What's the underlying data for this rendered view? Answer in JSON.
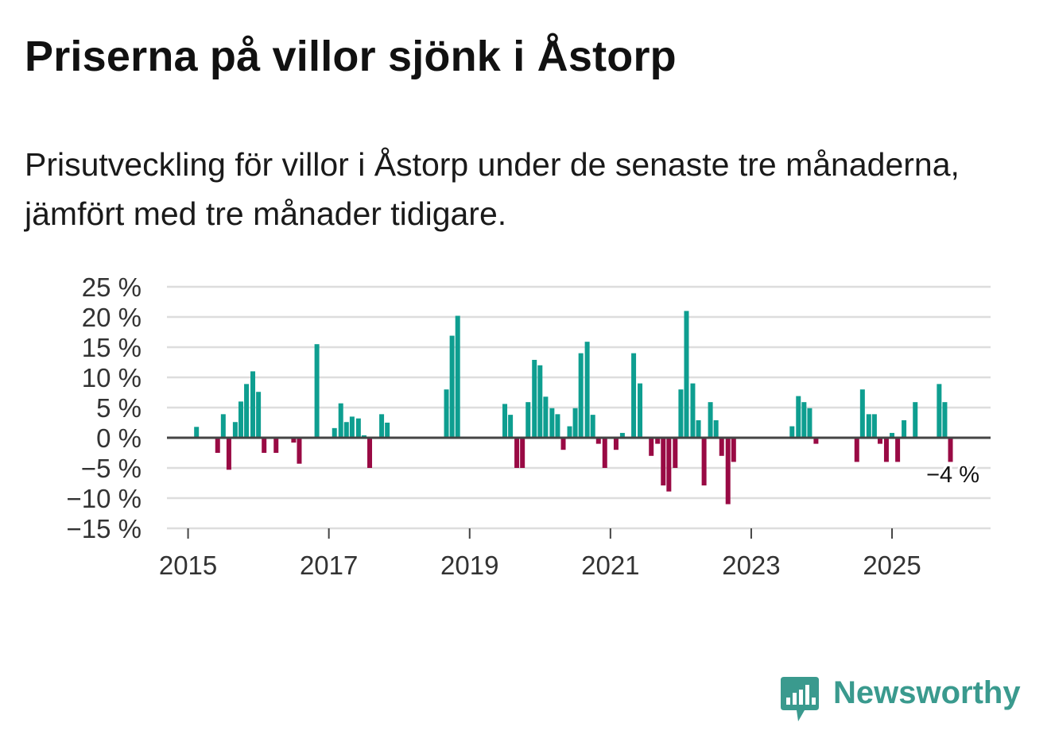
{
  "header": {
    "title": "Priserna på villor sjönk i Åstorp",
    "subtitle": "Prisutveckling för villor i Åstorp under de senaste tre månaderna, jämfört med tre månader tidigare."
  },
  "brand": {
    "name": "Newsworthy"
  },
  "colors": {
    "positive": "#0e9e90",
    "negative": "#990a44",
    "grid": "#dddddd",
    "zero": "#444444",
    "brand": "#3a9a8e"
  },
  "chart_data": {
    "type": "bar",
    "title": "Priserna på villor sjönk i Åstorp",
    "xlabel": "",
    "ylabel": "",
    "ylim": [
      -15,
      25
    ],
    "yticks": [
      25,
      20,
      15,
      10,
      5,
      0,
      -5,
      -10,
      -15
    ],
    "ytick_labels": [
      "25 %",
      "20 %",
      "15 %",
      "10 %",
      "5 %",
      "0 %",
      "−5 %",
      "−10 %",
      "−15 %"
    ],
    "xticks": [
      2015,
      2017,
      2019,
      2021,
      2023,
      2025
    ],
    "xtick_labels": [
      "2015",
      "2017",
      "2019",
      "2021",
      "2023",
      "2025"
    ],
    "x_range": [
      2014.7,
      2026.4
    ],
    "series": [
      {
        "name": "Prisutveckling",
        "points": [
          {
            "x": 2015.12,
            "y": 1.8
          },
          {
            "x": 2015.42,
            "y": -2.5
          },
          {
            "x": 2015.5,
            "y": 3.9
          },
          {
            "x": 2015.58,
            "y": -5.3
          },
          {
            "x": 2015.67,
            "y": 2.6
          },
          {
            "x": 2015.75,
            "y": 6.0
          },
          {
            "x": 2015.83,
            "y": 8.9
          },
          {
            "x": 2015.92,
            "y": 11.0
          },
          {
            "x": 2016.0,
            "y": 7.6
          },
          {
            "x": 2016.08,
            "y": -2.5
          },
          {
            "x": 2016.25,
            "y": -2.5
          },
          {
            "x": 2016.5,
            "y": -0.8
          },
          {
            "x": 2016.58,
            "y": -4.3
          },
          {
            "x": 2016.83,
            "y": 15.5
          },
          {
            "x": 2017.08,
            "y": 1.6
          },
          {
            "x": 2017.17,
            "y": 5.7
          },
          {
            "x": 2017.25,
            "y": 2.6
          },
          {
            "x": 2017.33,
            "y": 3.5
          },
          {
            "x": 2017.42,
            "y": 3.2
          },
          {
            "x": 2017.5,
            "y": 0.4
          },
          {
            "x": 2017.58,
            "y": -5.0
          },
          {
            "x": 2017.75,
            "y": 3.9
          },
          {
            "x": 2017.83,
            "y": 2.5
          },
          {
            "x": 2018.67,
            "y": 8.0
          },
          {
            "x": 2018.75,
            "y": 16.9
          },
          {
            "x": 2018.83,
            "y": 20.2
          },
          {
            "x": 2019.5,
            "y": 5.6
          },
          {
            "x": 2019.58,
            "y": 3.8
          },
          {
            "x": 2019.67,
            "y": -5.0
          },
          {
            "x": 2019.75,
            "y": -5.0
          },
          {
            "x": 2019.83,
            "y": 5.9
          },
          {
            "x": 2019.92,
            "y": 12.9
          },
          {
            "x": 2020.0,
            "y": 12.0
          },
          {
            "x": 2020.08,
            "y": 6.8
          },
          {
            "x": 2020.17,
            "y": 4.9
          },
          {
            "x": 2020.25,
            "y": 3.9
          },
          {
            "x": 2020.33,
            "y": -2.0
          },
          {
            "x": 2020.42,
            "y": 1.9
          },
          {
            "x": 2020.5,
            "y": 4.9
          },
          {
            "x": 2020.58,
            "y": 14.0
          },
          {
            "x": 2020.67,
            "y": 15.9
          },
          {
            "x": 2020.75,
            "y": 3.8
          },
          {
            "x": 2020.83,
            "y": -1.0
          },
          {
            "x": 2020.92,
            "y": -5.0
          },
          {
            "x": 2021.08,
            "y": -2.0
          },
          {
            "x": 2021.17,
            "y": 0.8
          },
          {
            "x": 2021.33,
            "y": 14.0
          },
          {
            "x": 2021.42,
            "y": 9.0
          },
          {
            "x": 2021.58,
            "y": -3.0
          },
          {
            "x": 2021.67,
            "y": -1.0
          },
          {
            "x": 2021.75,
            "y": -7.9
          },
          {
            "x": 2021.83,
            "y": -8.9
          },
          {
            "x": 2021.92,
            "y": -5.0
          },
          {
            "x": 2022.0,
            "y": 8.0
          },
          {
            "x": 2022.08,
            "y": 21.0
          },
          {
            "x": 2022.17,
            "y": 9.0
          },
          {
            "x": 2022.25,
            "y": 2.9
          },
          {
            "x": 2022.33,
            "y": -7.9
          },
          {
            "x": 2022.42,
            "y": 5.9
          },
          {
            "x": 2022.5,
            "y": 2.9
          },
          {
            "x": 2022.58,
            "y": -3.0
          },
          {
            "x": 2022.67,
            "y": -11.0
          },
          {
            "x": 2022.75,
            "y": -4.0
          },
          {
            "x": 2023.58,
            "y": 1.9
          },
          {
            "x": 2023.67,
            "y": 6.9
          },
          {
            "x": 2023.75,
            "y": 5.9
          },
          {
            "x": 2023.83,
            "y": 4.9
          },
          {
            "x": 2023.92,
            "y": -1.0
          },
          {
            "x": 2024.5,
            "y": -4.0
          },
          {
            "x": 2024.58,
            "y": 8.0
          },
          {
            "x": 2024.67,
            "y": 3.9
          },
          {
            "x": 2024.75,
            "y": 3.9
          },
          {
            "x": 2024.83,
            "y": -1.0
          },
          {
            "x": 2024.92,
            "y": -4.0
          },
          {
            "x": 2025.0,
            "y": 0.8
          },
          {
            "x": 2025.08,
            "y": -4.0
          },
          {
            "x": 2025.17,
            "y": 2.9
          },
          {
            "x": 2025.33,
            "y": 5.9
          },
          {
            "x": 2025.67,
            "y": 8.9
          },
          {
            "x": 2025.75,
            "y": 5.9
          },
          {
            "x": 2025.83,
            "y": -4.0
          }
        ]
      }
    ],
    "annotations": [
      {
        "x": 2025.83,
        "y": -4.0,
        "text": "−4 %"
      }
    ]
  }
}
